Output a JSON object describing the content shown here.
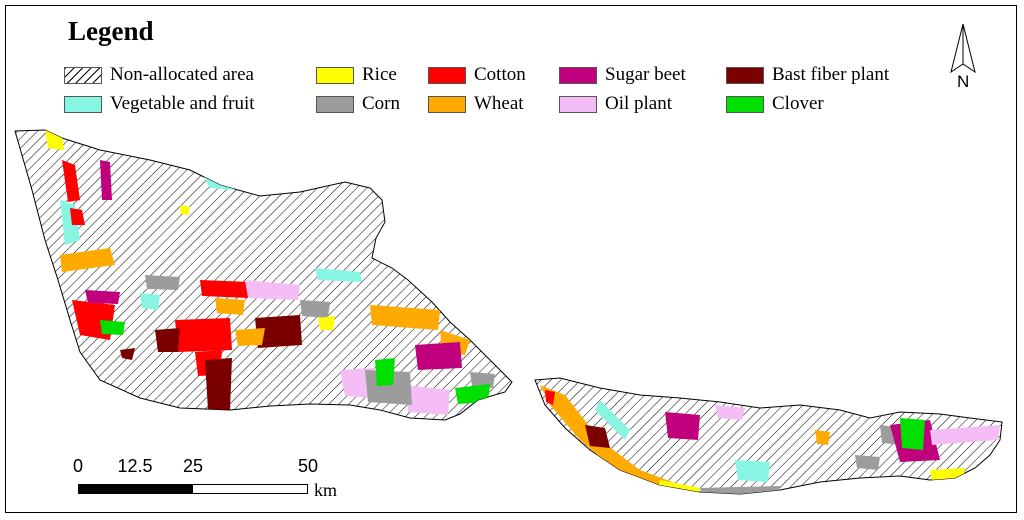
{
  "legend": {
    "title": "Legend",
    "items": [
      {
        "label": "Non-allocated area",
        "color": "#ffffff",
        "pattern": "hatch"
      },
      {
        "label": "Vegetable and fruit",
        "color": "#88f5e3"
      },
      {
        "label": "Rice",
        "color": "#ffff00"
      },
      {
        "label": "Corn",
        "color": "#9c9c9c"
      },
      {
        "label": "Cotton",
        "color": "#ff0000"
      },
      {
        "label": "Wheat",
        "color": "#ffaa00"
      },
      {
        "label": "Sugar beet",
        "color": "#c1007d"
      },
      {
        "label": "Oil plant",
        "color": "#f5bdf5"
      },
      {
        "label": "Bast fiber plant",
        "color": "#7a0000"
      },
      {
        "label": "Clover",
        "color": "#00e000"
      }
    ]
  },
  "north_arrow": {
    "label": "N"
  },
  "scale_bar": {
    "ticks": [
      "0",
      "12.5",
      "25",
      "50"
    ],
    "unit": "km"
  }
}
